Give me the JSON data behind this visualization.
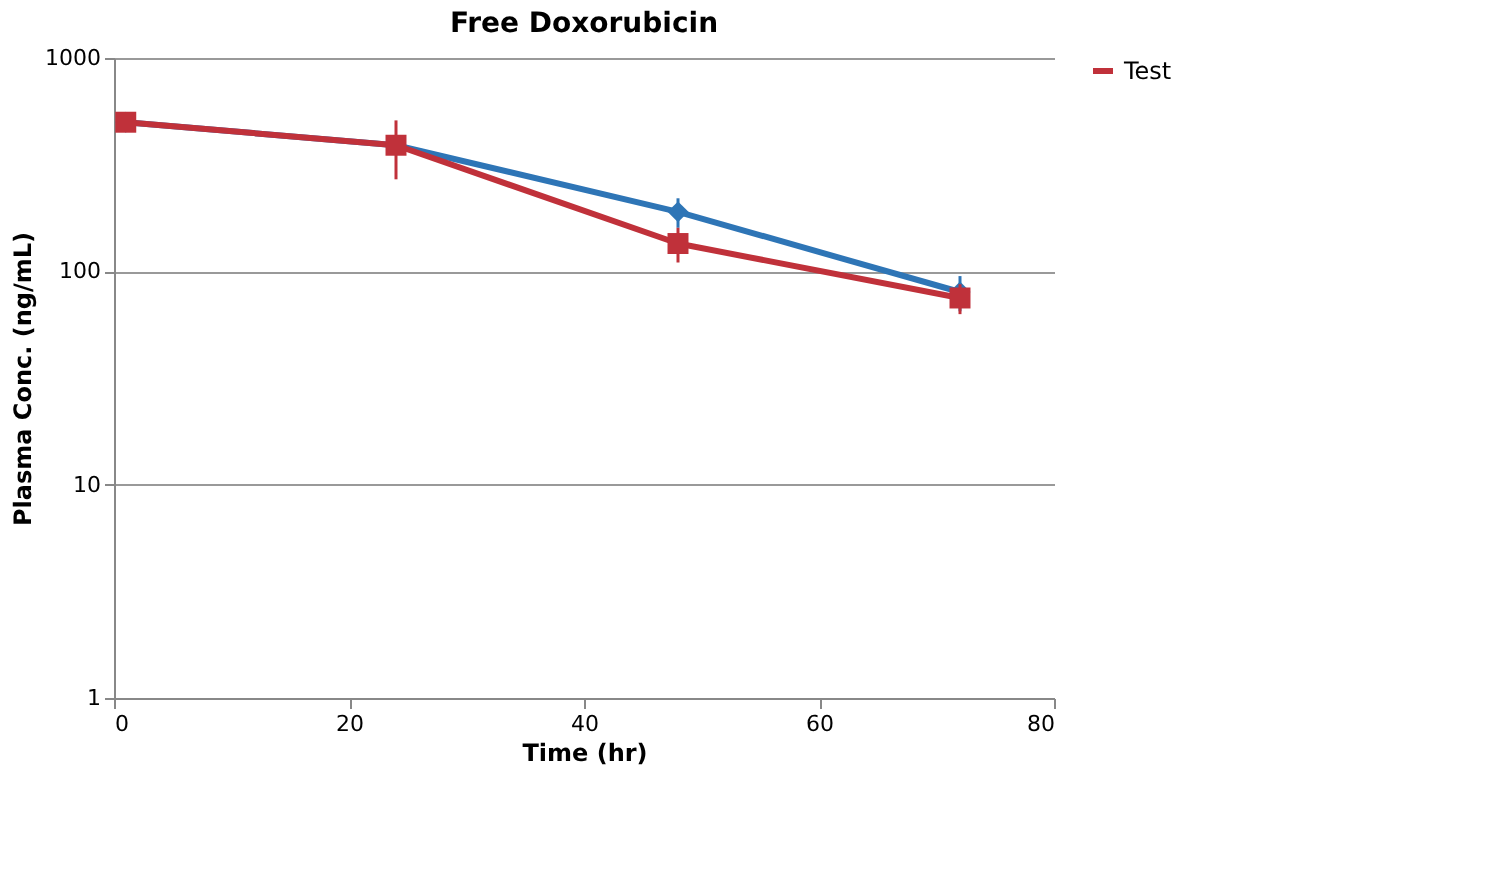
{
  "chart_data": {
    "type": "line",
    "title": "Free Doxorubicin",
    "xlabel": "Time (hr)",
    "ylabel": "Plasma Conc. (ng/mL)",
    "x": [
      1,
      24,
      48,
      72
    ],
    "series": [
      {
        "color": "#2e75b6",
        "marker": "diamond",
        "values": [
          500,
          390,
          190,
          80
        ],
        "errors": [
          null,
          null,
          30,
          15
        ]
      },
      {
        "name": "Test",
        "color": "#c0313a",
        "marker": "square",
        "values": [
          500,
          390,
          135,
          75
        ],
        "errors": [
          null,
          120,
          25,
          12
        ]
      }
    ],
    "xlim": [
      0,
      80
    ],
    "xticks": [
      0,
      20,
      40,
      60,
      80
    ],
    "ylim": [
      1,
      1000
    ],
    "yticks": [
      1,
      10,
      100,
      1000
    ],
    "log": "y",
    "grid": "y",
    "legend": "right",
    "line_style": "solid"
  }
}
